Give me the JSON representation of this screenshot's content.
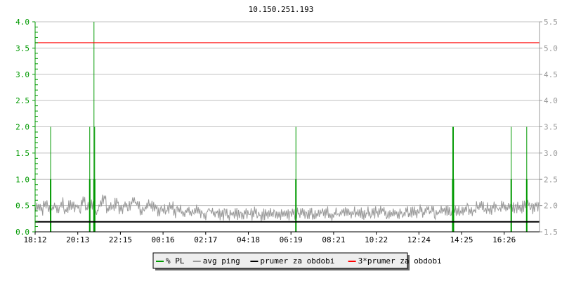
{
  "chart_data": {
    "type": "line",
    "title": "10.150.251.193",
    "x_ticks": [
      "18:12",
      "20:13",
      "22:15",
      "00:16",
      "02:17",
      "04:18",
      "06:19",
      "08:21",
      "10:22",
      "12:24",
      "14:25",
      "16:26"
    ],
    "left_axis": {
      "ylim": [
        0,
        4.0
      ],
      "ticks": [
        "0.0",
        "0.5",
        "1.0",
        "1.5",
        "2.0",
        "2.5",
        "3.0",
        "3.5",
        "4.0"
      ],
      "color": "#009900"
    },
    "right_axis": {
      "ylim": [
        1.5,
        5.5
      ],
      "ticks": [
        "1.5",
        "2.0",
        "2.5",
        "3.0",
        "3.5",
        "4.0",
        "4.5",
        "5.0",
        "5.5"
      ],
      "color": "#999999"
    },
    "grid": true,
    "legend_position": "bottom",
    "series": [
      {
        "name": "% PL",
        "color": "#009900",
        "axis": "left",
        "type": "impulse",
        "points": [
          {
            "time": "18:56",
            "value": 2.0
          },
          {
            "time": "20:47",
            "value": 2.0
          },
          {
            "time": "20:59",
            "value": 4.0
          },
          {
            "time": "21:01",
            "value": 2.0
          },
          {
            "time": "06:32",
            "value": 2.0
          },
          {
            "time": "13:57",
            "value": 2.0
          },
          {
            "time": "13:59",
            "value": 2.0
          },
          {
            "time": "16:43",
            "value": 2.0
          },
          {
            "time": "17:27",
            "value": 2.0
          }
        ]
      },
      {
        "name": "avg ping",
        "color": "#999999",
        "axis": "right",
        "values": [
          1.95,
          1.92,
          2.0,
          1.9,
          1.97,
          1.94,
          2.05,
          1.93,
          2.0,
          1.98,
          1.96,
          2.1,
          1.95,
          2.02,
          1.9,
          2.0,
          2.15,
          1.95,
          1.98,
          2.05,
          1.92,
          2.0,
          1.97,
          2.1,
          2.05,
          1.92,
          1.98,
          2.02,
          1.95,
          1.9,
          1.93,
          1.9,
          1.97,
          1.88,
          1.92,
          1.86,
          1.9,
          1.85,
          1.92,
          1.87,
          1.84,
          1.9,
          1.85,
          1.88,
          1.83,
          1.86,
          1.82,
          1.87,
          1.84,
          1.8,
          1.85,
          1.83,
          1.86,
          1.81,
          1.84,
          1.82,
          1.85,
          1.8,
          1.83,
          1.86,
          1.82,
          1.84,
          1.85,
          1.88,
          1.83,
          1.86,
          1.84,
          1.82,
          1.85,
          1.87,
          1.83,
          1.86,
          1.84,
          1.88,
          1.85,
          1.83,
          1.87,
          1.86,
          1.84,
          1.88,
          1.85,
          1.87,
          1.9,
          1.86,
          1.84,
          1.88,
          1.85,
          1.87,
          1.89,
          1.86,
          1.88,
          1.9,
          1.87,
          1.92,
          1.88,
          1.86,
          1.9,
          1.93,
          1.89,
          1.87,
          1.91,
          1.9,
          1.95,
          1.93,
          1.9,
          1.97,
          2.0,
          1.94,
          1.92,
          1.96,
          1.93,
          1.98,
          1.95,
          2.0,
          1.96,
          1.93,
          1.98,
          2.02,
          1.95,
          1.99
        ]
      },
      {
        "name": "prumer za obdobi",
        "color": "#000000",
        "axis": "right",
        "value": 1.69
      },
      {
        "name": "3*prumer za obdobi",
        "color": "#ff0000",
        "axis": "right",
        "value": 5.1
      }
    ]
  }
}
